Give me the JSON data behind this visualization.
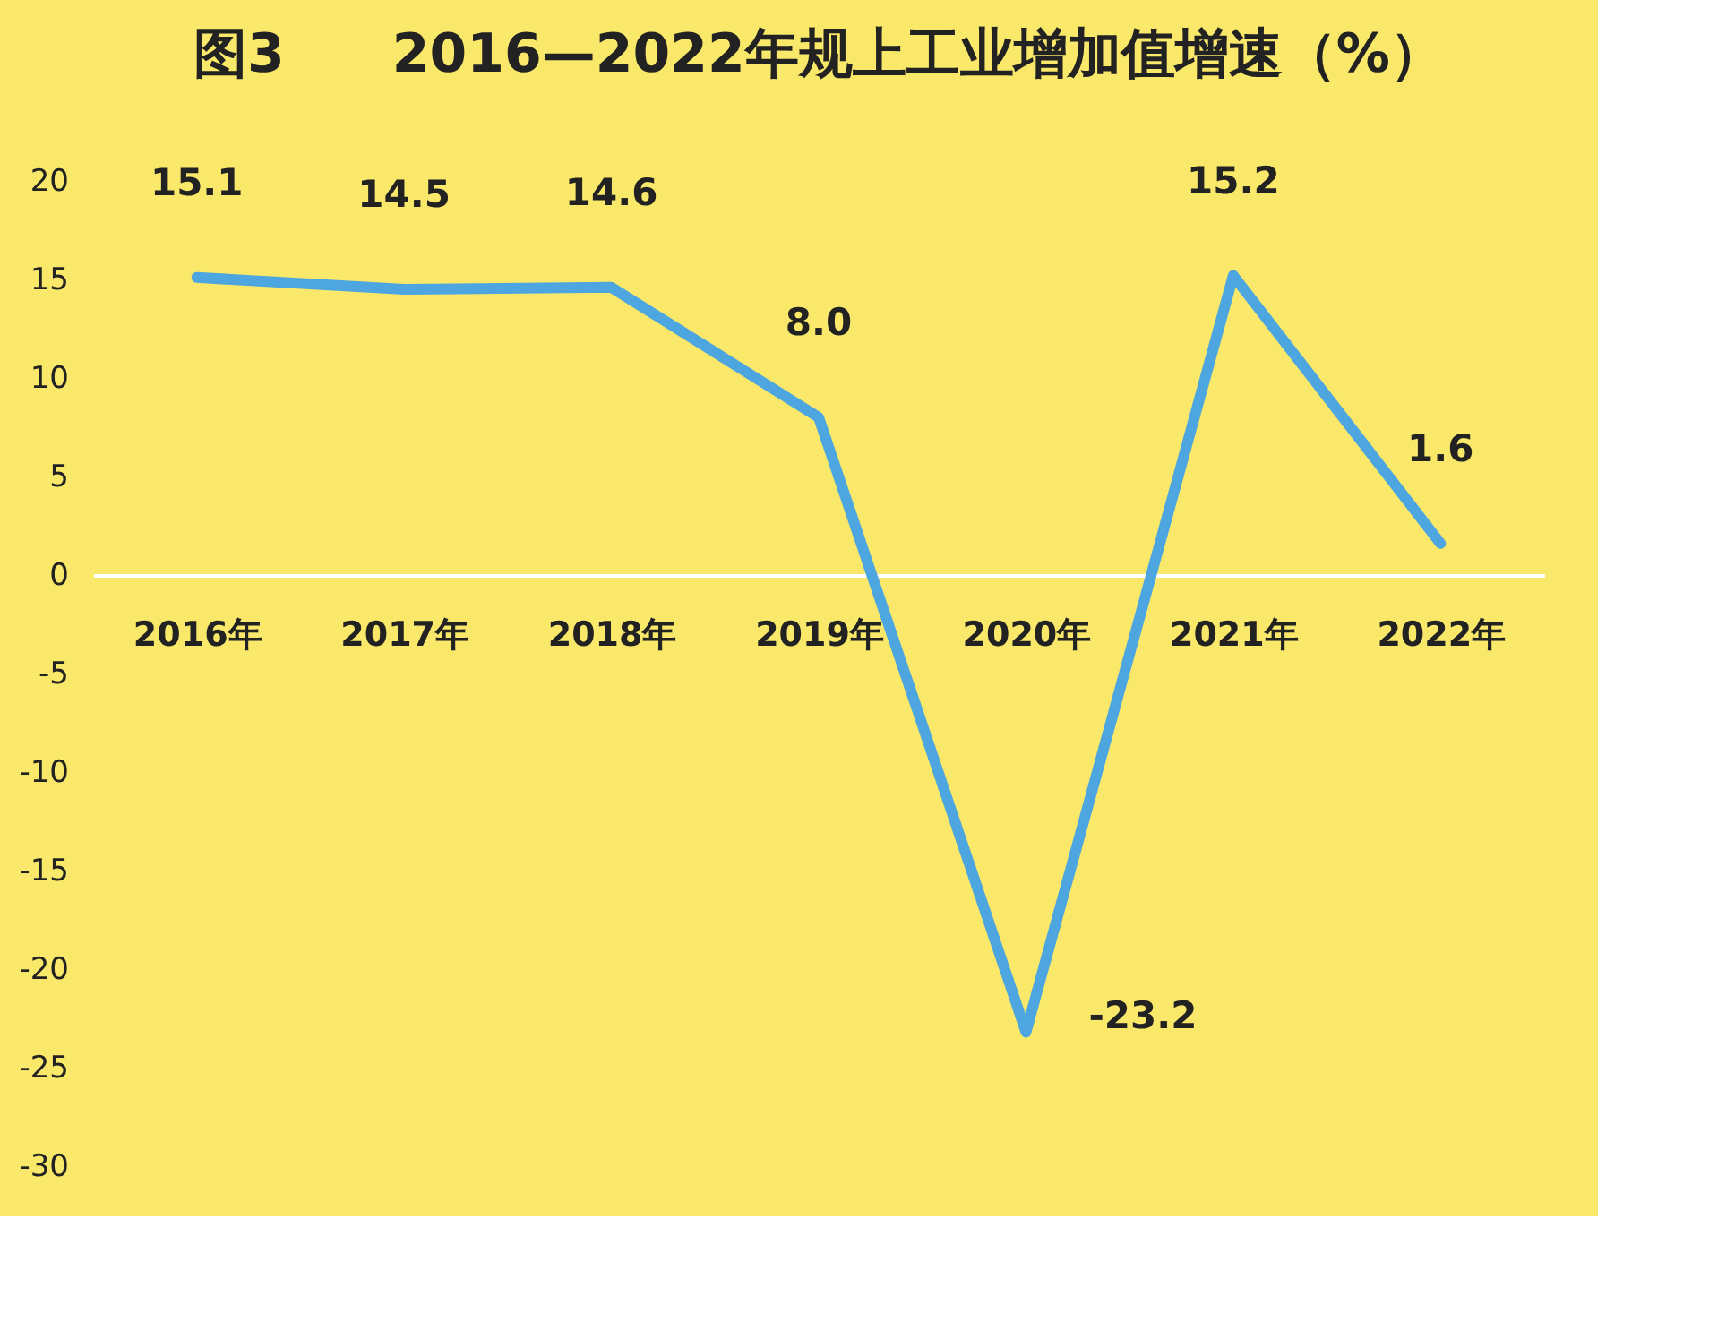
{
  "chart_data": {
    "type": "line",
    "title": "图3　　2016—2022年规上工业增加值增速（%）",
    "categories": [
      "2016年",
      "2017年",
      "2018年",
      "2019年",
      "2020年",
      "2021年",
      "2022年"
    ],
    "series": [
      {
        "color": "#4da6e0",
        "values": [
          15.1,
          14.5,
          14.6,
          8.0,
          -23.2,
          15.2,
          1.6
        ],
        "value_labels": [
          "15.1",
          "14.5",
          "14.6",
          "8.0",
          "-23.2",
          "15.2",
          "1.6"
        ]
      }
    ],
    "ylim": [
      -30,
      20
    ],
    "yticks": [
      -30,
      -25,
      -20,
      -15,
      -10,
      -5,
      0,
      5,
      10,
      15,
      20
    ],
    "grid": false,
    "marker": "none",
    "line_style": "solid"
  }
}
